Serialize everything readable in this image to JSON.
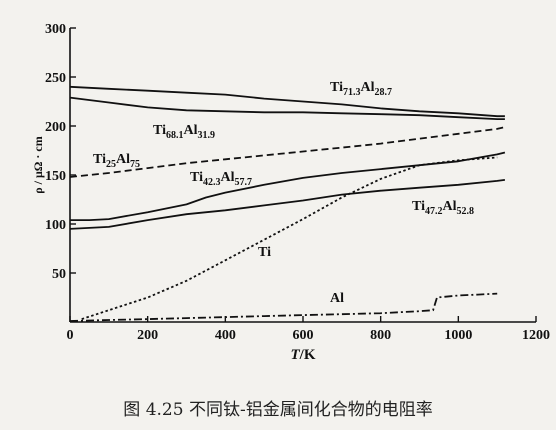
{
  "caption": "图 4.25 不同钛-铝金属间化合物的电阻率",
  "chart_data": {
    "type": "line",
    "title": "",
    "xlabel": "T/K",
    "ylabel": "ρ / μΩ · cm",
    "xlim": [
      0,
      1200
    ],
    "ylim": [
      0,
      300
    ],
    "xticks": [
      0,
      200,
      400,
      600,
      800,
      1000,
      1200
    ],
    "yticks": [
      50,
      100,
      150,
      200,
      250,
      300
    ],
    "series": [
      {
        "name": "Ti71.3Al28.7",
        "label_parts": [
          "Ti",
          "71.3",
          "Al",
          "28.7"
        ],
        "style": "solid",
        "x": [
          0,
          100,
          200,
          300,
          400,
          500,
          600,
          700,
          800,
          900,
          1000,
          1100,
          1120
        ],
        "y": [
          240,
          238,
          236,
          234,
          232,
          228,
          225,
          222,
          218,
          215,
          213,
          210,
          210
        ]
      },
      {
        "name": "Ti68.1Al31.9",
        "label_parts": [
          "Ti",
          "68.1",
          "Al",
          "31.9"
        ],
        "style": "solid",
        "x": [
          0,
          100,
          200,
          300,
          400,
          500,
          600,
          700,
          800,
          900,
          1000,
          1100,
          1120
        ],
        "y": [
          229,
          224,
          219,
          216,
          215,
          214,
          214,
          213,
          212,
          211,
          209,
          207,
          207
        ]
      },
      {
        "name": "Ti25Al75",
        "label_parts": [
          "Ti",
          "25",
          "Al",
          "75"
        ],
        "style": "dashed",
        "x": [
          0,
          100,
          200,
          300,
          400,
          500,
          600,
          700,
          800,
          900,
          1000,
          1100,
          1120
        ],
        "y": [
          148,
          152,
          157,
          162,
          166,
          170,
          174,
          178,
          182,
          187,
          192,
          197,
          199
        ]
      },
      {
        "name": "Ti42.3Al57.7",
        "label_parts": [
          "Ti",
          "42.3",
          "Al",
          "57.7"
        ],
        "style": "solid",
        "x": [
          0,
          50,
          100,
          200,
          300,
          350,
          400,
          500,
          600,
          700,
          800,
          900,
          1000,
          1100,
          1120
        ],
        "y": [
          104,
          104,
          105,
          112,
          120,
          127,
          132,
          140,
          147,
          152,
          156,
          160,
          164,
          171,
          173
        ]
      },
      {
        "name": "Ti47.2Al52.8",
        "label_parts": [
          "Ti",
          "47.2",
          "Al",
          "52.8"
        ],
        "style": "solid",
        "x": [
          0,
          100,
          200,
          300,
          400,
          500,
          600,
          700,
          800,
          900,
          1000,
          1100,
          1120
        ],
        "y": [
          95,
          97,
          104,
          110,
          114,
          119,
          124,
          130,
          134,
          137,
          140,
          144,
          145
        ]
      },
      {
        "name": "Ti",
        "label_parts": [
          "Ti"
        ],
        "style": "dotted",
        "x": [
          30,
          100,
          200,
          300,
          400,
          500,
          600,
          700,
          800,
          900,
          1000,
          1100
        ],
        "y": [
          3,
          12,
          25,
          42,
          63,
          84,
          105,
          127,
          146,
          160,
          165,
          168
        ]
      },
      {
        "name": "Al",
        "label_parts": [
          "Al"
        ],
        "style": "dashdot",
        "x": [
          0,
          100,
          200,
          300,
          400,
          500,
          600,
          700,
          800,
          900,
          935,
          945,
          1000,
          1050,
          1100
        ],
        "y": [
          1,
          2,
          3,
          4,
          5,
          6,
          7,
          8,
          9,
          11,
          12,
          25,
          27,
          28,
          29
        ]
      }
    ]
  }
}
